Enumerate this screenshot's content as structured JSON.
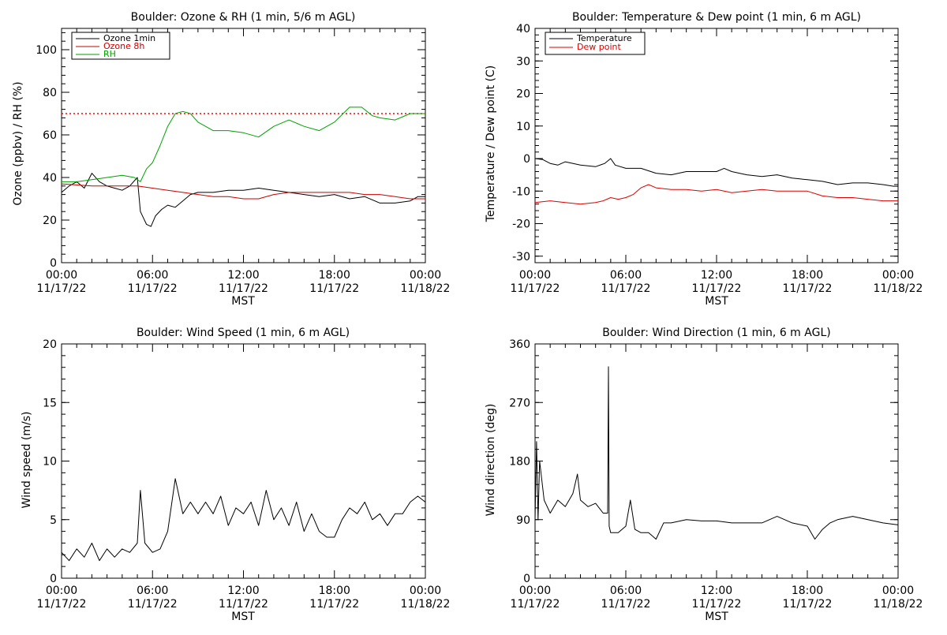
{
  "chart_data": [
    {
      "type": "line",
      "title": "Boulder: Ozone & RH (1 min, 5/6 m AGL)",
      "xlabel": "MST",
      "ylabel": "Ozone (ppbv) / RH (%)",
      "xlim": [
        0,
        24
      ],
      "ylim": [
        0,
        110
      ],
      "yticks": [
        "0",
        "20",
        "40",
        "60",
        "80",
        "100"
      ],
      "yticks_values": [
        0,
        20,
        40,
        60,
        80,
        100
      ],
      "xticks": [
        {
          "time": "00:00",
          "date": "11/17/22",
          "x": 0
        },
        {
          "time": "06:00",
          "date": "11/17/22",
          "x": 6
        },
        {
          "time": "12:00",
          "date": "11/17/22",
          "x": 12
        },
        {
          "time": "18:00",
          "date": "11/17/22",
          "x": 18
        },
        {
          "time": "00:00",
          "date": "11/18/22",
          "x": 24
        }
      ],
      "legend_position": "top-left",
      "reference_line": {
        "y": 70,
        "color": "#ff0000",
        "style": "dotted"
      },
      "series": [
        {
          "name": "Ozone 1min",
          "color": "#000000",
          "x": [
            0,
            0.5,
            1,
            1.5,
            2,
            2.5,
            3,
            3.5,
            4,
            4.5,
            5,
            5.2,
            5.6,
            5.9,
            6.2,
            6.6,
            7,
            7.5,
            8,
            8.5,
            9,
            10,
            11,
            12,
            13,
            14,
            15,
            16,
            17,
            18,
            19,
            20,
            21,
            22,
            23,
            23.5,
            24
          ],
          "y": [
            33,
            36,
            38,
            35,
            42,
            38,
            36,
            35,
            34,
            36,
            40,
            24,
            18,
            17,
            22,
            25,
            27,
            26,
            29,
            32,
            33,
            33,
            34,
            34,
            35,
            34,
            33,
            32,
            31,
            32,
            30,
            31,
            28,
            28,
            29,
            31,
            31
          ]
        },
        {
          "name": "Ozone 8h",
          "color": "#cc0000",
          "x": [
            0,
            2,
            4,
            5,
            6,
            7,
            8,
            9,
            10,
            11,
            12,
            13,
            14,
            15,
            16,
            17,
            18,
            19,
            20,
            21,
            22,
            23,
            24
          ],
          "y": [
            37,
            36,
            36,
            36,
            35,
            34,
            33,
            32,
            31,
            31,
            30,
            30,
            32,
            33,
            33,
            33,
            33,
            33,
            32,
            32,
            31,
            30,
            30
          ]
        },
        {
          "name": "RH",
          "color": "#00a000",
          "x": [
            0,
            1,
            2,
            3,
            4,
            4.8,
            5.2,
            5.6,
            6,
            6.5,
            7,
            7.5,
            8,
            8.5,
            9,
            10,
            11,
            12,
            13,
            14,
            15,
            16,
            17,
            18,
            19,
            19.8,
            20.5,
            21,
            22,
            23,
            24
          ],
          "y": [
            38,
            38,
            39,
            40,
            41,
            40,
            38,
            44,
            47,
            55,
            64,
            70,
            71,
            70,
            66,
            62,
            62,
            61,
            59,
            64,
            67,
            64,
            62,
            66,
            73,
            73,
            69,
            68,
            67,
            70,
            70
          ]
        }
      ]
    },
    {
      "type": "line",
      "title": "Boulder: Temperature & Dew point (1 min, 6 m AGL)",
      "xlabel": "MST",
      "ylabel": "Temperature / Dew point (C)",
      "xlim": [
        0,
        24
      ],
      "ylim": [
        -32,
        40
      ],
      "yticks": [
        "-30",
        "-20",
        "-10",
        "0",
        "10",
        "20",
        "30",
        "40"
      ],
      "yticks_values": [
        -30,
        -20,
        -10,
        0,
        10,
        20,
        30,
        40
      ],
      "xticks": [
        {
          "time": "00:00",
          "date": "11/17/22",
          "x": 0
        },
        {
          "time": "06:00",
          "date": "11/17/22",
          "x": 6
        },
        {
          "time": "12:00",
          "date": "11/17/22",
          "x": 12
        },
        {
          "time": "18:00",
          "date": "11/17/22",
          "x": 18
        },
        {
          "time": "00:00",
          "date": "11/18/22",
          "x": 24
        }
      ],
      "legend_position": "top-left",
      "series": [
        {
          "name": "Temperature",
          "color": "#000000",
          "x": [
            0,
            0.5,
            1,
            1.5,
            2,
            3,
            4,
            4.6,
            5,
            5.3,
            6,
            7,
            8,
            9,
            10,
            11,
            12,
            12.5,
            13,
            14,
            15,
            16,
            17,
            18,
            19,
            20,
            21,
            22,
            23,
            23.7,
            24
          ],
          "y": [
            0,
            -0.3,
            -1.5,
            -2,
            -1,
            -2,
            -2.5,
            -1.5,
            0,
            -2,
            -3,
            -3,
            -4.5,
            -5,
            -4,
            -4,
            -4,
            -3,
            -4,
            -5,
            -5.5,
            -5,
            -6,
            -6.5,
            -7,
            -8,
            -7.5,
            -7.5,
            -8,
            -8.5,
            -8.5
          ]
        },
        {
          "name": "Dew point",
          "color": "#dd0000",
          "x": [
            0,
            1,
            2,
            3,
            4,
            4.5,
            5,
            5.5,
            6,
            6.5,
            7,
            7.5,
            8,
            9,
            10,
            11,
            12,
            13,
            14,
            15,
            16,
            17,
            18,
            19,
            20,
            21,
            22,
            23,
            24
          ],
          "y": [
            -13.5,
            -13,
            -13.5,
            -14,
            -13.5,
            -13,
            -12,
            -12.5,
            -12,
            -11,
            -9,
            -8,
            -9,
            -9.5,
            -9.5,
            -10,
            -9.5,
            -10.5,
            -10,
            -9.5,
            -10,
            -10,
            -10,
            -11.5,
            -12,
            -12,
            -12.5,
            -13,
            -13
          ]
        }
      ]
    },
    {
      "type": "line",
      "title": "Boulder: Wind Speed (1 min, 6 m AGL)",
      "xlabel": "MST",
      "ylabel": "Wind speed (m/s)",
      "xlim": [
        0,
        24
      ],
      "ylim": [
        0,
        20
      ],
      "yticks": [
        "0",
        "5",
        "10",
        "15",
        "20"
      ],
      "yticks_values": [
        0,
        5,
        10,
        15,
        20
      ],
      "xticks": [
        {
          "time": "00:00",
          "date": "11/17/22",
          "x": 0
        },
        {
          "time": "06:00",
          "date": "11/17/22",
          "x": 6
        },
        {
          "time": "12:00",
          "date": "11/17/22",
          "x": 12
        },
        {
          "time": "18:00",
          "date": "11/17/22",
          "x": 18
        },
        {
          "time": "00:00",
          "date": "11/18/22",
          "x": 24
        }
      ],
      "series": [
        {
          "name": "",
          "color": "#000000",
          "x": [
            0,
            0.5,
            1,
            1.5,
            2,
            2.5,
            3,
            3.5,
            4,
            4.5,
            5,
            5.2,
            5.5,
            6,
            6.5,
            7,
            7.5,
            8,
            8.5,
            9,
            9.5,
            10,
            10.5,
            11,
            11.5,
            12,
            12.5,
            13,
            13.5,
            14,
            14.5,
            15,
            15.5,
            16,
            16.5,
            17,
            17.5,
            18,
            18.5,
            19,
            19.5,
            20,
            20.5,
            21,
            21.5,
            22,
            22.5,
            23,
            23.5,
            24
          ],
          "y": [
            2.2,
            1.5,
            2.5,
            1.8,
            3,
            1.5,
            2.5,
            1.8,
            2.5,
            2.2,
            3,
            7.5,
            3,
            2.2,
            2.5,
            4,
            8.5,
            5.5,
            6.5,
            5.5,
            6.5,
            5.5,
            7,
            4.5,
            6,
            5.5,
            6.5,
            4.5,
            7.5,
            5,
            6,
            4.5,
            6.5,
            4,
            5.5,
            4,
            3.5,
            3.5,
            5,
            6,
            5.5,
            6.5,
            5,
            5.5,
            4.5,
            5.5,
            5.5,
            6.5,
            7,
            6.5
          ]
        }
      ]
    },
    {
      "type": "line",
      "title": "Boulder: Wind Direction (1 min, 6 m AGL)",
      "xlabel": "MST",
      "ylabel": "Wind direction (deg)",
      "xlim": [
        0,
        24
      ],
      "ylim": [
        0,
        360
      ],
      "yticks": [
        "0",
        "90",
        "180",
        "270",
        "360"
      ],
      "yticks_values": [
        0,
        90,
        180,
        270,
        360
      ],
      "xticks": [
        {
          "time": "00:00",
          "date": "11/17/22",
          "x": 0
        },
        {
          "time": "06:00",
          "date": "11/17/22",
          "x": 6
        },
        {
          "time": "12:00",
          "date": "11/17/22",
          "x": 12
        },
        {
          "time": "18:00",
          "date": "11/17/22",
          "x": 18
        },
        {
          "time": "00:00",
          "date": "11/18/22",
          "x": 24
        }
      ],
      "series": [
        {
          "name": "",
          "color": "#000000",
          "x": [
            0,
            0.1,
            0.2,
            0.3,
            0.6,
            1,
            1.5,
            2,
            2.5,
            2.8,
            3,
            3.5,
            4,
            4.5,
            4.8,
            4.85,
            4.9,
            5,
            5.5,
            6,
            6.3,
            6.6,
            7,
            7.5,
            8,
            8.5,
            9,
            10,
            11,
            12,
            13,
            14,
            15,
            16,
            17,
            18,
            18.5,
            19,
            19.5,
            20,
            21,
            22,
            23,
            24
          ],
          "y": [
            90,
            210,
            90,
            180,
            120,
            100,
            120,
            110,
            130,
            160,
            120,
            110,
            115,
            100,
            100,
            325,
            80,
            70,
            70,
            80,
            120,
            75,
            70,
            70,
            60,
            85,
            85,
            90,
            88,
            88,
            85,
            85,
            85,
            95,
            85,
            80,
            60,
            75,
            85,
            90,
            95,
            90,
            85,
            82
          ]
        }
      ]
    }
  ]
}
